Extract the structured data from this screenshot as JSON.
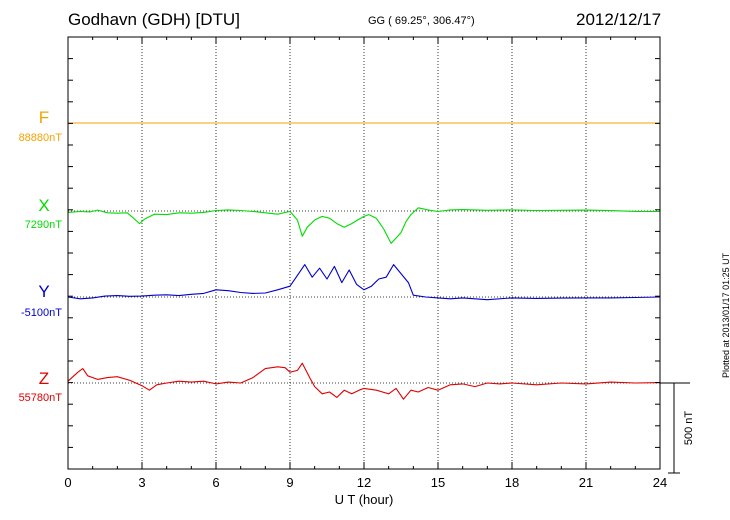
{
  "header": {
    "station": "Godhavn (GDH)  [DTU]",
    "coords": "GG ( 69.25°, 306.47°)",
    "date": "2012/12/17"
  },
  "footer": {
    "plotted": "Plotted at 2013/01/17 01:25 UT"
  },
  "chart_data": {
    "type": "line",
    "xlabel": "U T (hour)",
    "xlim": [
      0,
      24
    ],
    "xticks": [
      0,
      3,
      6,
      9,
      12,
      15,
      18,
      21,
      24
    ],
    "xtick_labels": [
      "0",
      "3",
      "6",
      "9",
      "12",
      "15",
      "18",
      "21",
      "24"
    ],
    "grid": true,
    "scale_bar_label": "500 nT",
    "scale_bar_nT": 500,
    "series": [
      {
        "name": "F",
        "baseline_label": "88880nT",
        "color": "#f5a300",
        "points": [
          [
            0,
            0
          ],
          [
            24,
            0
          ]
        ]
      },
      {
        "name": "X",
        "baseline_label": "7290nT",
        "color": "#00dd00",
        "points": [
          [
            0,
            -8
          ],
          [
            0.5,
            -3
          ],
          [
            0.9,
            -5
          ],
          [
            1.2,
            5
          ],
          [
            1.6,
            -10
          ],
          [
            2.0,
            -12
          ],
          [
            2.4,
            -10
          ],
          [
            2.7,
            -45
          ],
          [
            2.9,
            -70
          ],
          [
            3.1,
            -45
          ],
          [
            3.5,
            -18
          ],
          [
            4.0,
            -20
          ],
          [
            4.5,
            -10
          ],
          [
            5.0,
            -12
          ],
          [
            5.5,
            -8
          ],
          [
            6.0,
            3
          ],
          [
            6.5,
            6
          ],
          [
            7.0,
            3
          ],
          [
            7.5,
            -3
          ],
          [
            8.0,
            -10
          ],
          [
            8.5,
            -18
          ],
          [
            9.0,
            -2
          ],
          [
            9.3,
            -50
          ],
          [
            9.5,
            -140
          ],
          [
            9.7,
            -90
          ],
          [
            10.0,
            -50
          ],
          [
            10.3,
            -30
          ],
          [
            10.6,
            -40
          ],
          [
            10.9,
            -70
          ],
          [
            11.2,
            -90
          ],
          [
            11.5,
            -70
          ],
          [
            11.8,
            -45
          ],
          [
            12.0,
            -30
          ],
          [
            12.2,
            -20
          ],
          [
            12.5,
            -40
          ],
          [
            12.8,
            -100
          ],
          [
            13.1,
            -180
          ],
          [
            13.3,
            -150
          ],
          [
            13.5,
            -120
          ],
          [
            13.7,
            -60
          ],
          [
            13.9,
            -20
          ],
          [
            14.2,
            18
          ],
          [
            14.6,
            6
          ],
          [
            15.0,
            -3
          ],
          [
            15.5,
            6
          ],
          [
            16.0,
            8
          ],
          [
            17.0,
            4
          ],
          [
            18.0,
            6
          ],
          [
            19.0,
            3
          ],
          [
            20.0,
            4
          ],
          [
            21.0,
            5
          ],
          [
            22.0,
            2
          ],
          [
            23.0,
            -2
          ],
          [
            24.0,
            -3
          ]
        ]
      },
      {
        "name": "Y",
        "baseline_label": "-5100nT",
        "color": "#0000cc",
        "points": [
          [
            0,
            0
          ],
          [
            0.5,
            -10
          ],
          [
            1.0,
            -5
          ],
          [
            1.5,
            5
          ],
          [
            2.0,
            8
          ],
          [
            2.5,
            4
          ],
          [
            3.0,
            5
          ],
          [
            3.5,
            10
          ],
          [
            4.0,
            12
          ],
          [
            4.5,
            8
          ],
          [
            5.0,
            15
          ],
          [
            5.5,
            20
          ],
          [
            6.0,
            40
          ],
          [
            6.5,
            35
          ],
          [
            7.0,
            25
          ],
          [
            7.5,
            20
          ],
          [
            8.0,
            22
          ],
          [
            8.5,
            40
          ],
          [
            9.0,
            60
          ],
          [
            9.3,
            120
          ],
          [
            9.6,
            180
          ],
          [
            9.9,
            110
          ],
          [
            10.2,
            160
          ],
          [
            10.5,
            100
          ],
          [
            10.8,
            170
          ],
          [
            11.1,
            80
          ],
          [
            11.4,
            150
          ],
          [
            11.7,
            70
          ],
          [
            12.0,
            40
          ],
          [
            12.3,
            60
          ],
          [
            12.6,
            100
          ],
          [
            12.9,
            110
          ],
          [
            13.2,
            180
          ],
          [
            13.5,
            130
          ],
          [
            13.8,
            80
          ],
          [
            14.0,
            10
          ],
          [
            14.5,
            0
          ],
          [
            15.0,
            -5
          ],
          [
            15.5,
            -10
          ],
          [
            16.0,
            -5
          ],
          [
            16.5,
            -10
          ],
          [
            17.0,
            -15
          ],
          [
            18.0,
            -5
          ],
          [
            19.0,
            -8
          ],
          [
            20.0,
            -6
          ],
          [
            21.0,
            -5
          ],
          [
            22.0,
            -5
          ],
          [
            23.0,
            -3
          ],
          [
            24.0,
            0
          ]
        ]
      },
      {
        "name": "Z",
        "baseline_label": "55780nT",
        "color": "#e00000",
        "points": [
          [
            0,
            10
          ],
          [
            0.4,
            60
          ],
          [
            0.6,
            80
          ],
          [
            0.8,
            40
          ],
          [
            1.2,
            20
          ],
          [
            1.6,
            30
          ],
          [
            2.0,
            35
          ],
          [
            2.5,
            15
          ],
          [
            3.0,
            -15
          ],
          [
            3.3,
            -40
          ],
          [
            3.6,
            -10
          ],
          [
            4.0,
            0
          ],
          [
            4.5,
            10
          ],
          [
            5.0,
            5
          ],
          [
            5.5,
            10
          ],
          [
            6.0,
            -5
          ],
          [
            6.5,
            5
          ],
          [
            7.0,
            0
          ],
          [
            7.5,
            30
          ],
          [
            8.0,
            80
          ],
          [
            8.5,
            90
          ],
          [
            8.8,
            85
          ],
          [
            9.0,
            60
          ],
          [
            9.3,
            70
          ],
          [
            9.5,
            110
          ],
          [
            9.8,
            30
          ],
          [
            10.0,
            -20
          ],
          [
            10.3,
            -60
          ],
          [
            10.6,
            -50
          ],
          [
            10.9,
            -80
          ],
          [
            11.2,
            -40
          ],
          [
            11.5,
            -60
          ],
          [
            11.8,
            -40
          ],
          [
            12.0,
            -30
          ],
          [
            12.5,
            -40
          ],
          [
            13.0,
            -60
          ],
          [
            13.3,
            -30
          ],
          [
            13.6,
            -90
          ],
          [
            13.9,
            -40
          ],
          [
            14.2,
            -50
          ],
          [
            14.6,
            -25
          ],
          [
            15.0,
            -40
          ],
          [
            15.5,
            -10
          ],
          [
            16.0,
            -5
          ],
          [
            16.5,
            -20
          ],
          [
            17.0,
            0
          ],
          [
            17.5,
            -5
          ],
          [
            18.0,
            0
          ],
          [
            19.0,
            -10
          ],
          [
            20.0,
            0
          ],
          [
            21.0,
            -5
          ],
          [
            22.0,
            5
          ],
          [
            23.0,
            0
          ],
          [
            24.0,
            2
          ]
        ]
      }
    ]
  }
}
